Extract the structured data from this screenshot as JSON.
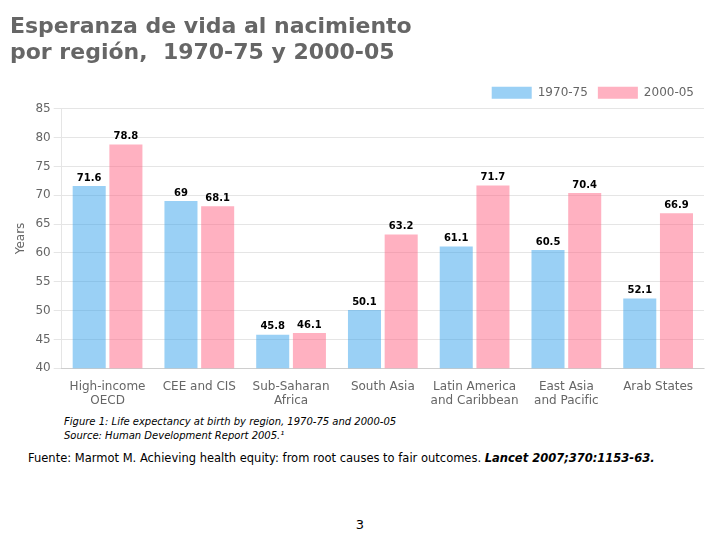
{
  "chart_data": {
    "type": "bar",
    "title": [
      "Esperanza de vida al nacimiento",
      "por región,  1970-75 y 2000-05"
    ],
    "categories": [
      "High-income\nOECD",
      "CEE and CIS",
      "Sub-Saharan\nAfrica",
      "South Asia",
      "Latin America\nand Caribbean",
      "East Asia\nand Pacific",
      "Arab States"
    ],
    "series": [
      {
        "name": "1970-75",
        "values": [
          71.6,
          69,
          45.8,
          50.1,
          61.1,
          60.5,
          52.1
        ]
      },
      {
        "name": "2000-05",
        "values": [
          78.8,
          68.1,
          46.1,
          63.2,
          71.7,
          70.4,
          66.9
        ]
      }
    ],
    "ylabel": "Years",
    "ylim": [
      40,
      85
    ],
    "yticks": [
      40,
      45,
      50,
      55,
      60,
      65,
      70,
      75,
      80,
      85
    ],
    "grid": true,
    "legend": "upper right",
    "data_labels": true,
    "annotations": [
      "Figure 1: Life expectancy at birth by region, 1970-75 and 2000-05",
      "Source: Human Development Report 2005.¹",
      "Fuente: Marmot M. Achieving health equity: from root causes to fair outcomes. ",
      "Lancet 2007;370:1153-63.",
      "3"
    ]
  }
}
